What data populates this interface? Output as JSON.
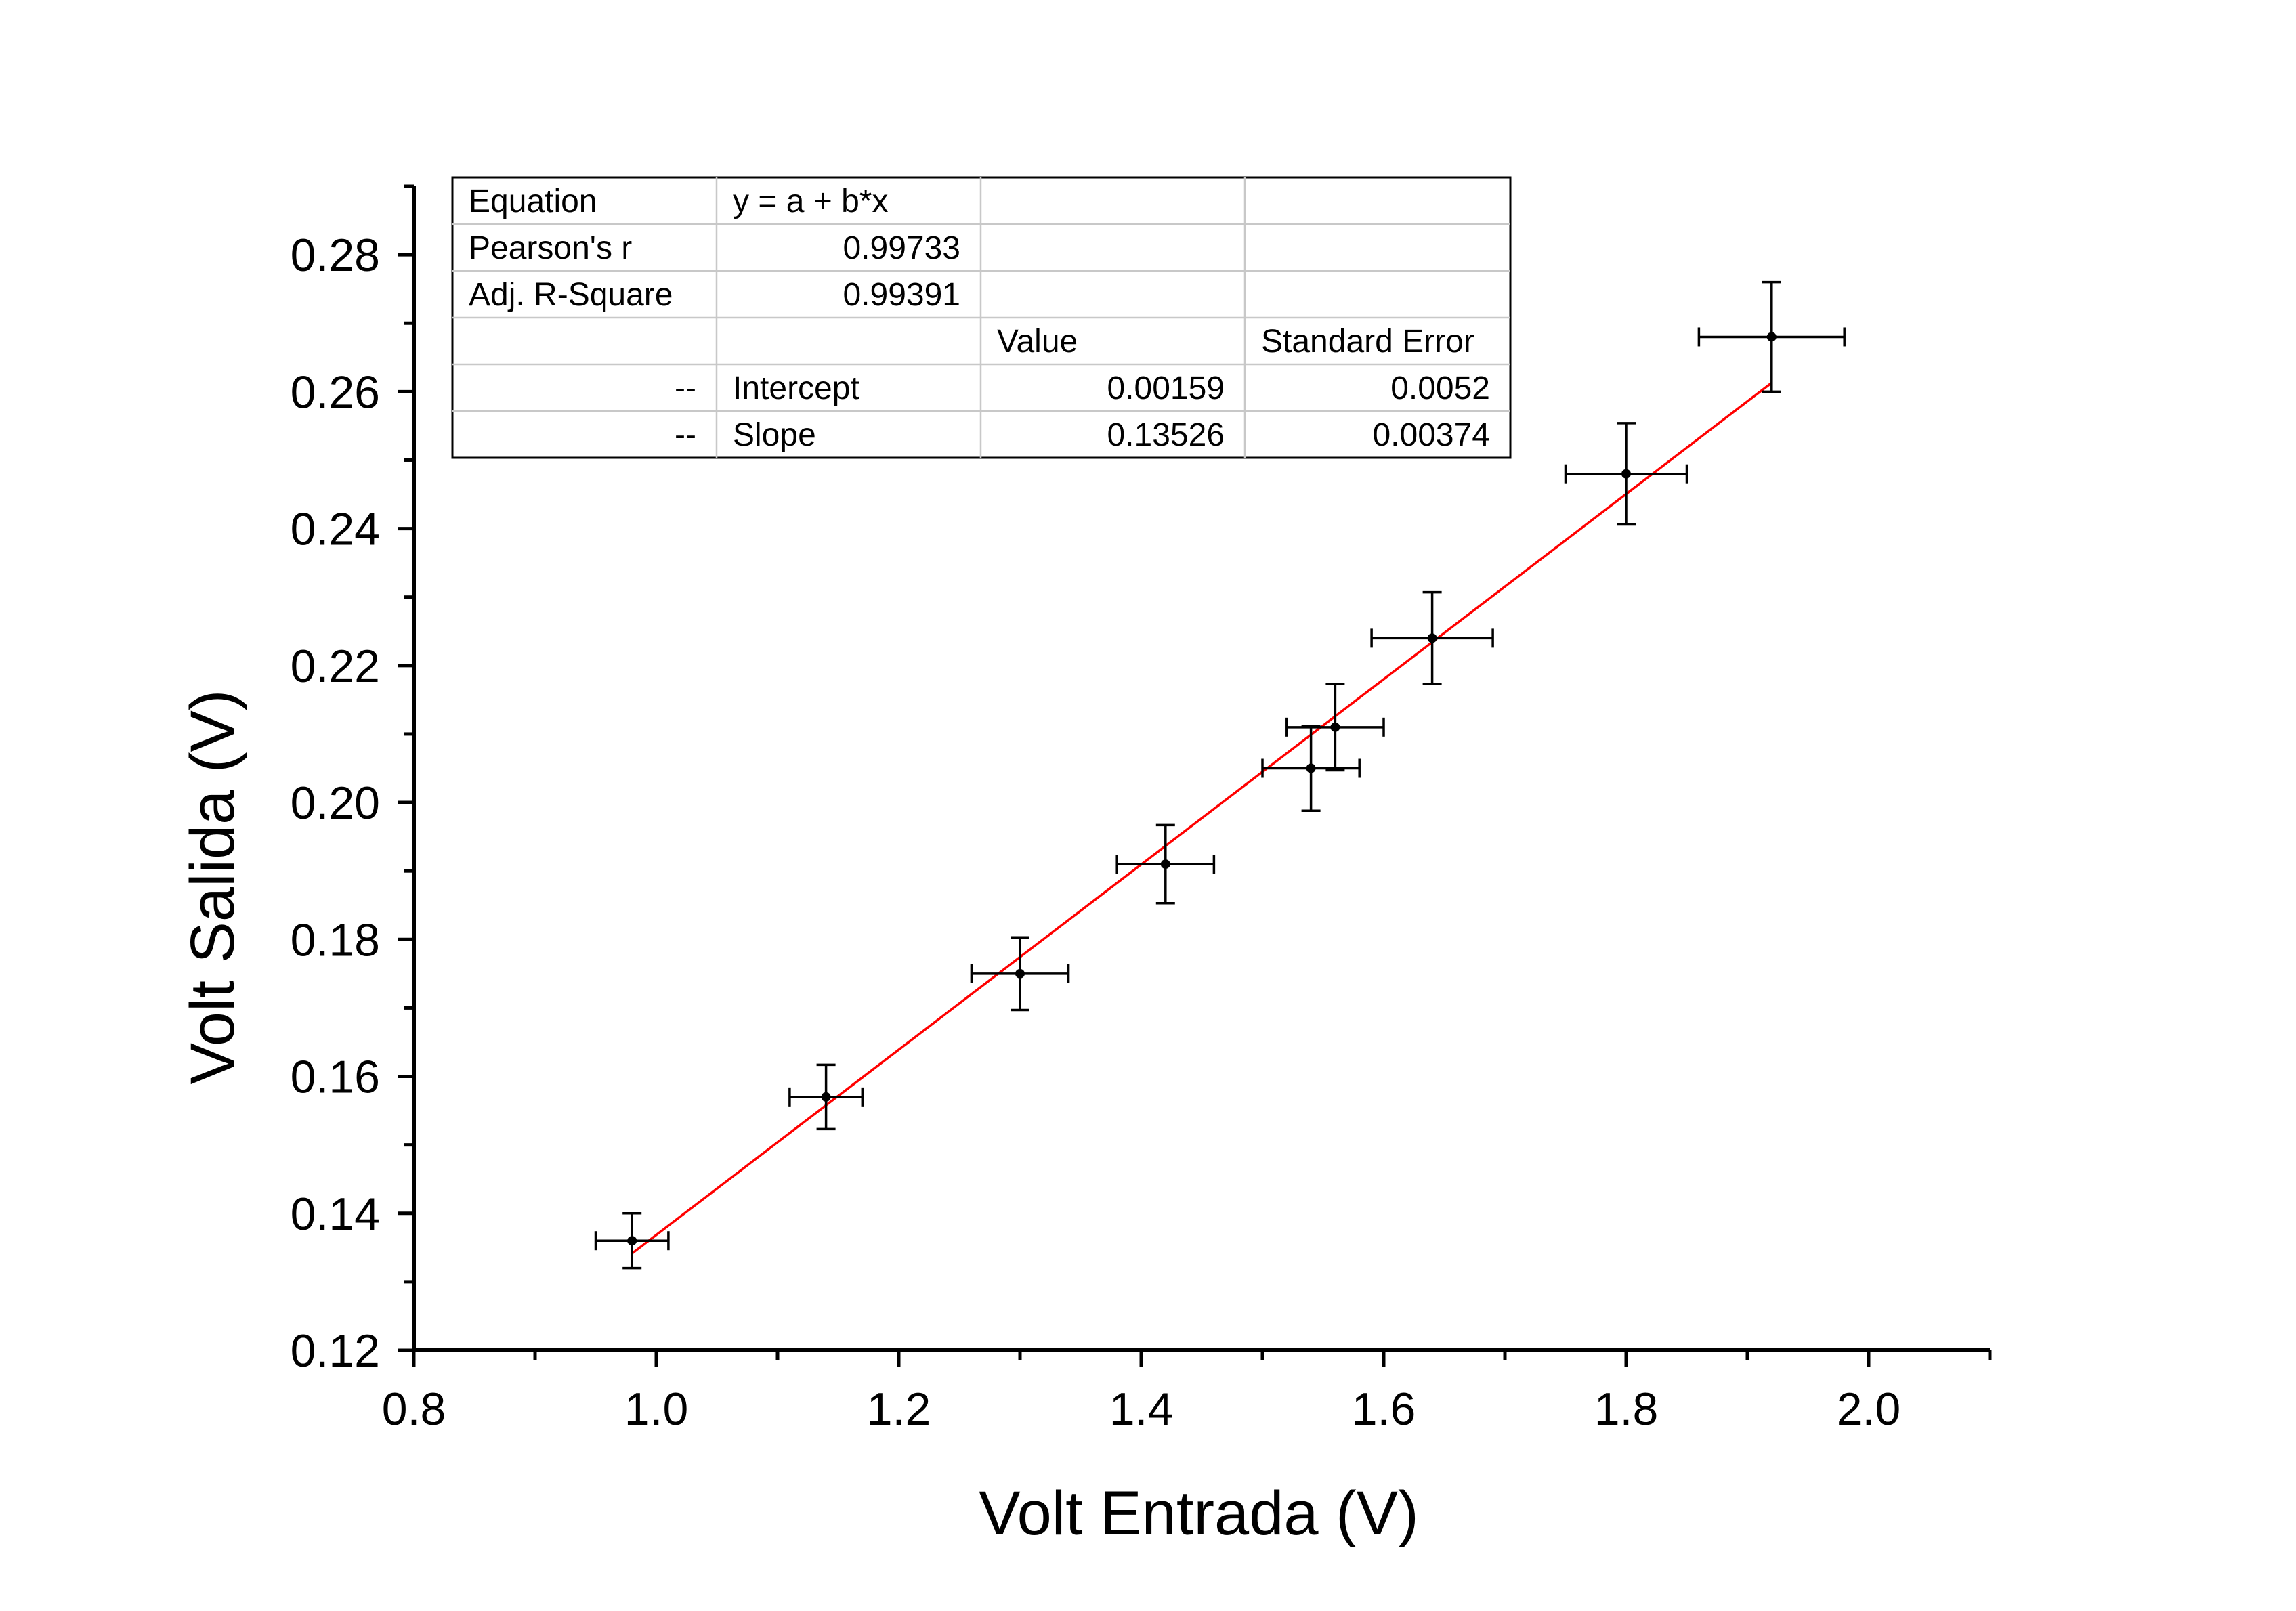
{
  "chart_data": {
    "type": "scatter",
    "xlabel": "Volt Entrada (V)",
    "ylabel": "Volt Salida (V)",
    "xlim": [
      0.8,
      2.1
    ],
    "ylim": [
      0.12,
      0.29
    ],
    "x_ticks": [
      "0.8",
      "1.0",
      "1.2",
      "1.4",
      "1.6",
      "1.8",
      "2.0"
    ],
    "y_ticks": [
      "0.12",
      "0.14",
      "0.16",
      "0.18",
      "0.20",
      "0.22",
      "0.24",
      "0.26",
      "0.28"
    ],
    "grid": false,
    "points": [
      {
        "x": 0.98,
        "y": 0.136,
        "xerr": 0.03,
        "yerr": 0.004
      },
      {
        "x": 1.14,
        "y": 0.157,
        "xerr": 0.03,
        "yerr": 0.0047
      },
      {
        "x": 1.3,
        "y": 0.175,
        "xerr": 0.04,
        "yerr": 0.0053
      },
      {
        "x": 1.42,
        "y": 0.191,
        "xerr": 0.04,
        "yerr": 0.0057
      },
      {
        "x": 1.54,
        "y": 0.205,
        "xerr": 0.04,
        "yerr": 0.0062
      },
      {
        "x": 1.56,
        "y": 0.211,
        "xerr": 0.04,
        "yerr": 0.0063
      },
      {
        "x": 1.64,
        "y": 0.224,
        "xerr": 0.05,
        "yerr": 0.0067
      },
      {
        "x": 1.8,
        "y": 0.248,
        "xerr": 0.05,
        "yerr": 0.0074
      },
      {
        "x": 1.92,
        "y": 0.268,
        "xerr": 0.06,
        "yerr": 0.008
      }
    ],
    "fit": {
      "intercept": 0.00159,
      "slope": 0.13526,
      "x_range": [
        0.98,
        1.92
      ],
      "color": "#ff0000"
    },
    "colors": {
      "points": "#000000",
      "fit_line": "#ff0000"
    },
    "table": {
      "rows": [
        [
          "Equation",
          "y = a + b*x",
          "",
          ""
        ],
        [
          "Pearson's r",
          "0.99733",
          "",
          ""
        ],
        [
          "Adj. R-Square",
          "0.99391",
          "",
          ""
        ],
        [
          "",
          "",
          "Value",
          "Standard Error"
        ],
        [
          "--",
          "Intercept",
          "0.00159",
          "0.0052"
        ],
        [
          "--",
          "Slope",
          "0.13526",
          "0.00374"
        ]
      ]
    }
  }
}
